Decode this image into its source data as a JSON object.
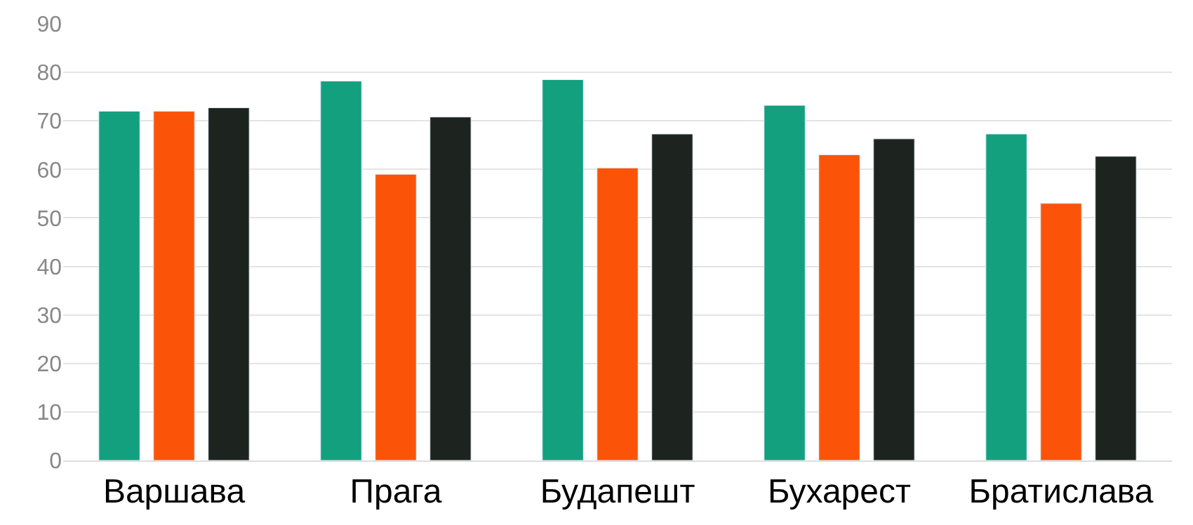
{
  "chart_data": {
    "type": "bar",
    "categories": [
      "Варшава",
      "Прага",
      "Будапешт",
      "Бухарест",
      "Братислава"
    ],
    "series": [
      {
        "color": "#12a07e",
        "values": [
          72,
          78.2,
          78.5,
          73.2,
          67.3
        ]
      },
      {
        "color": "#fb5408",
        "values": [
          72,
          59,
          60.3,
          63,
          53
        ]
      },
      {
        "color": "#1d2420",
        "values": [
          72.7,
          70.8,
          67.3,
          66.3,
          62.7
        ]
      }
    ],
    "ylim": [
      0,
      90
    ],
    "yticks": [
      0,
      10,
      20,
      30,
      40,
      50,
      60,
      70,
      80,
      90
    ],
    "grid": "y"
  }
}
